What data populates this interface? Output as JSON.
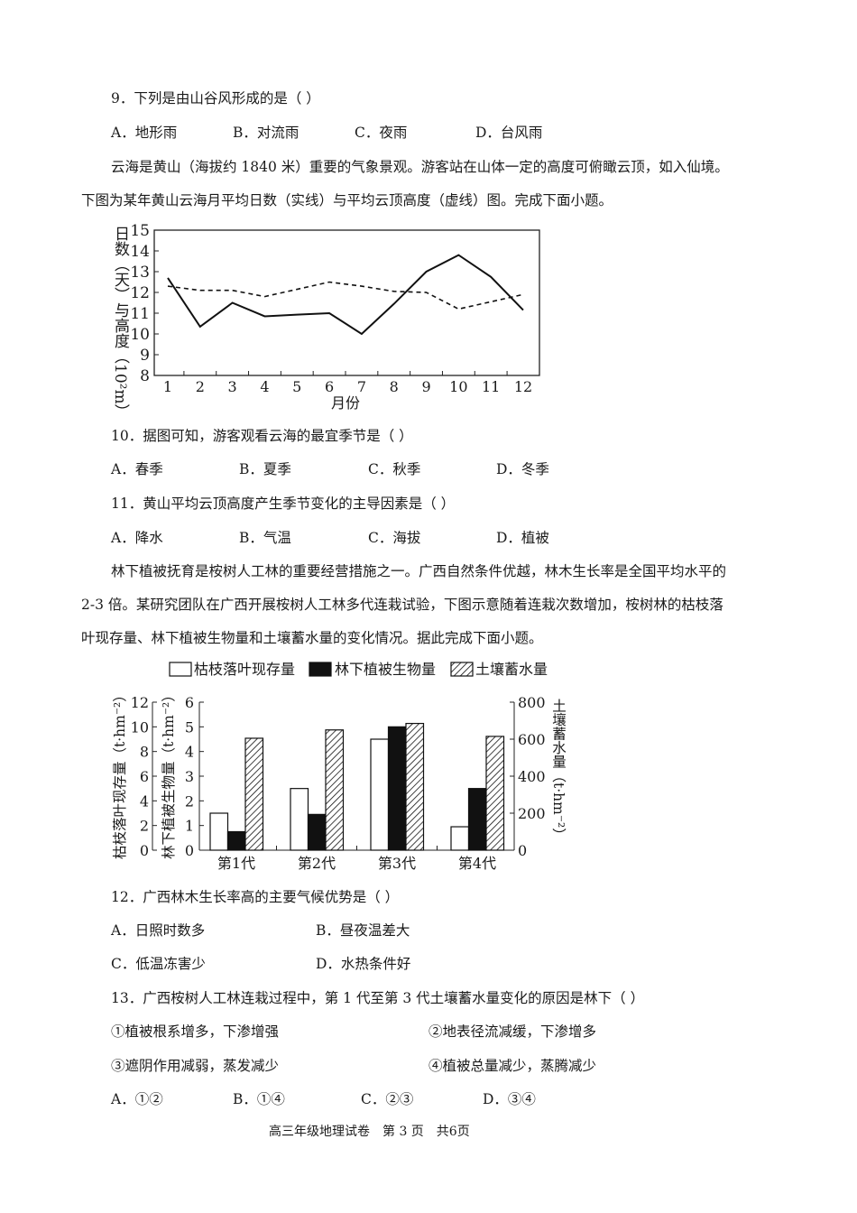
{
  "q9": {
    "stem": "9．下列是由山谷风形成的是（          ）",
    "options": [
      "A．地形雨",
      "B．对流雨",
      "C．夜雨",
      "D．台风雨"
    ]
  },
  "intro1": {
    "line1": "云海是黄山（海拔约 1840 米）重要的气象景观。游客站在山体一定的高度可俯瞰云顶，如入仙境。",
    "line2": "下图为某年黄山云海月平均日数（实线）与平均云顶高度（虚线）图。完成下面小题。"
  },
  "q10": {
    "stem": "10．据图可知，游客观看云海的最宜季节是（          ）",
    "options": [
      "A．春季",
      "B．夏季",
      "C．秋季",
      "D．冬季"
    ]
  },
  "q11": {
    "stem": "11．黄山平均云顶高度产生季节变化的主导因素是（          ）",
    "options": [
      "A．降水",
      "B．气温",
      "C．海拔",
      "D．植被"
    ]
  },
  "intro2": {
    "line1": "林下植被抚育是桉树人工林的重要经营措施之一。广西自然条件优越，林木生长率是全国平均水平的",
    "line2": "2-3 倍。某研究团队在广西开展桉树人工林多代连栽试验，下图示意随着连栽次数增加，桉树林的枯枝落",
    "line3": "叶现存量、林下植被生物量和土壤蓄水量的变化情况。据此完成下面小题。"
  },
  "q12": {
    "stem": "12．广西林木生长率高的主要气候优势是（          ）",
    "options": [
      "A．日照时数多",
      "B．昼夜温差大",
      "C．低温冻害少",
      "D．水热条件好"
    ]
  },
  "q13": {
    "stem": "13．广西桉树人工林连栽过程中，第 1 代至第 3 代土壤蓄水量变化的原因是林下（          ）",
    "items": [
      "①植被根系增多，下渗增强",
      "②地表径流减缓，下渗增多",
      "③遮阴作用减弱，蒸发减少",
      "④植被总量减少，蒸腾减少"
    ],
    "options": [
      "A．①②",
      "B．①④",
      "C．②③",
      "D．③④"
    ]
  },
  "footer": "高三年级地理试卷　第 3 页　共6页",
  "chart_data": [
    {
      "type": "line",
      "ylabel": "日数（天）与高度（10²m）",
      "xlabel": "月份",
      "x": [
        1,
        2,
        3,
        4,
        5,
        6,
        7,
        8,
        9,
        10,
        11,
        12
      ],
      "ylim": [
        8,
        15
      ],
      "yticks": [
        8,
        9,
        10,
        11,
        12,
        13,
        14,
        15
      ],
      "grid": false,
      "series": [
        {
          "style": "solid",
          "values": [
            12.7,
            10.35,
            11.5,
            10.85,
            10.93,
            11.0,
            10.0,
            11.45,
            13.0,
            13.8,
            12.75,
            11.15
          ]
        },
        {
          "style": "dashed",
          "values": [
            12.3,
            12.1,
            12.1,
            11.8,
            12.15,
            12.5,
            12.3,
            12.05,
            12.0,
            11.2,
            11.55,
            11.9
          ]
        }
      ]
    },
    {
      "type": "bar",
      "categories": [
        "第1代",
        "第2代",
        "第3代",
        "第4代"
      ],
      "legend_position": "top",
      "axes": {
        "left_outer": {
          "label": "枯枝落叶现存量（t·hm⁻²）",
          "ylim": [
            0,
            12
          ],
          "ticks": [
            0,
            2,
            4,
            6,
            8,
            10,
            12
          ]
        },
        "left_inner": {
          "label": "林下植被生物量（t·hm⁻²）",
          "ylim": [
            0,
            6
          ],
          "ticks": [
            0,
            1,
            2,
            3,
            4,
            5,
            6
          ]
        },
        "right": {
          "label": "土壤蓄水量（t·hm⁻²）",
          "ylim": [
            0,
            800
          ],
          "ticks": [
            0,
            200,
            400,
            600,
            800
          ]
        }
      },
      "series": [
        {
          "name": "枯枝落叶现存量",
          "axis": "left_outer",
          "fill": "white",
          "values": [
            3.0,
            5.0,
            9.0,
            1.9
          ]
        },
        {
          "name": "林下植被生物量",
          "axis": "left_inner",
          "fill": "black",
          "values": [
            0.75,
            1.45,
            5.0,
            2.5
          ]
        },
        {
          "name": "土壤蓄水量",
          "axis": "right",
          "fill": "hatch",
          "values": [
            605,
            650,
            685,
            615
          ]
        }
      ]
    }
  ]
}
